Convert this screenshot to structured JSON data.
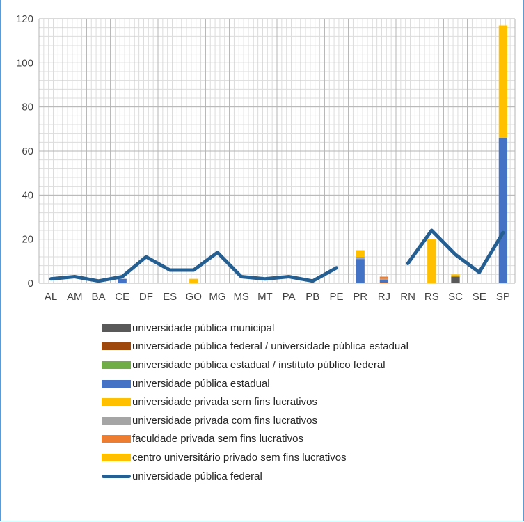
{
  "chart_data": {
    "type": "bar",
    "stacked": true,
    "categories": [
      "AL",
      "AM",
      "BA",
      "CE",
      "DF",
      "ES",
      "GO",
      "MG",
      "MS",
      "MT",
      "PA",
      "PB",
      "PE",
      "PR",
      "RJ",
      "RN",
      "RS",
      "SC",
      "SE",
      "SP"
    ],
    "y_ticks": [
      "0",
      "20",
      "40",
      "60",
      "80",
      "100",
      "120"
    ],
    "ylim": [
      0,
      120
    ],
    "grid": true,
    "legend_position": "bottom",
    "series": [
      {
        "name": "universidade pública municipal",
        "color": "#595959",
        "kind": "bar",
        "values": [
          0,
          0,
          0,
          0,
          0,
          0,
          0,
          0,
          0,
          0,
          0,
          0,
          0,
          0,
          0,
          0,
          0,
          3,
          0,
          0
        ]
      },
      {
        "name": "universidade pública federal / universidade pública estadual",
        "color": "#9e480e",
        "kind": "bar",
        "values": [
          0,
          0,
          0,
          0,
          0,
          0,
          0,
          0,
          0,
          0,
          0,
          0,
          0,
          0,
          0.5,
          0,
          0,
          0,
          0,
          0
        ]
      },
      {
        "name": "universidade pública estadual / instituto público federal",
        "color": "#70ad47",
        "kind": "bar",
        "values": [
          0,
          0,
          0,
          0,
          0,
          0,
          0,
          0,
          0,
          0,
          0,
          0,
          0,
          0,
          0,
          0,
          0,
          0,
          0,
          0
        ]
      },
      {
        "name": "universidade pública estadual",
        "color": "#4472c4",
        "kind": "bar",
        "values": [
          0,
          0,
          0,
          2,
          0,
          0,
          0,
          0,
          0,
          0,
          0,
          0,
          0,
          11,
          1,
          0,
          0,
          0,
          0,
          66
        ]
      },
      {
        "name": "universidade privada sem fins lucrativos",
        "color": "#ffc000",
        "kind": "bar",
        "values": [
          0,
          0,
          0,
          0,
          0,
          0,
          0,
          0,
          0,
          0,
          0,
          0,
          0,
          0,
          0,
          0,
          0,
          0,
          0,
          0
        ]
      },
      {
        "name": "universidade privada com fins lucrativos",
        "color": "#a5a5a5",
        "kind": "bar",
        "values": [
          0,
          0,
          0,
          0,
          0,
          0,
          0,
          0,
          0,
          0,
          0,
          0,
          0,
          1,
          0.5,
          0,
          0,
          0,
          0,
          0
        ]
      },
      {
        "name": "faculdade privada sem fins lucrativos",
        "color": "#ed7d31",
        "kind": "bar",
        "values": [
          0,
          0,
          0,
          0,
          0,
          0,
          0,
          0,
          0,
          0,
          0,
          0,
          0,
          0,
          1,
          0,
          0,
          0,
          0,
          0
        ]
      },
      {
        "name": "centro universitário privado sem fins lucrativos",
        "color": "#ffc000",
        "kind": "bar",
        "values": [
          0,
          0,
          0,
          0,
          0,
          0,
          2,
          0,
          0,
          0,
          0,
          0,
          0,
          3,
          0,
          0,
          20,
          1,
          0,
          51
        ]
      },
      {
        "name": "universidade pública federal",
        "color": "#255e91",
        "kind": "line",
        "values": [
          2,
          3,
          1,
          3,
          12,
          6,
          6,
          14,
          3,
          2,
          3,
          1,
          7,
          null,
          null,
          9,
          24,
          13,
          5,
          23
        ]
      }
    ]
  }
}
